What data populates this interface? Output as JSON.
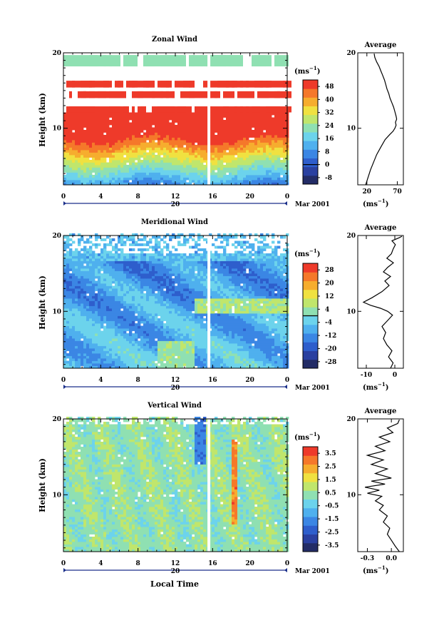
{
  "chart_data": [
    {
      "type": "heatmap",
      "title": "Zonal Wind",
      "ylabel": "Height (km)",
      "x_ticks": [
        "0",
        "4",
        "8",
        "12",
        "16",
        "20",
        "0"
      ],
      "y_ticks": [
        "10",
        "20"
      ],
      "ylim": [
        2.5,
        20
      ],
      "date_day": "20",
      "date_label": "Mar 2001",
      "colorbar": {
        "unit_base": "(ms",
        "unit_exp": "−1",
        "unit_close": ")",
        "labels": [
          "48",
          "40",
          "32",
          "24",
          "16",
          "8",
          "0",
          "-8"
        ],
        "range": [
          -12,
          52
        ],
        "contour_at": 0,
        "colors": [
          "#232c66",
          "#2a40a0",
          "#2e5ecc",
          "#3b86e4",
          "#4fb0ee",
          "#6cd3ec",
          "#8fe0b2",
          "#c0e66c",
          "#f0e140",
          "#f6ad2e",
          "#f5782a",
          "#ee3a2a"
        ]
      },
      "profile": {
        "title": "Average",
        "x_ticks": [
          "20",
          "70"
        ],
        "xlim": [
          5,
          80
        ],
        "y_ticks": [
          "10",
          "20"
        ],
        "xlabel_base": "(ms",
        "xlabel_exp": "−1",
        "xlabel_close": ")",
        "points": [
          [
            18,
            2.5
          ],
          [
            22,
            3.5
          ],
          [
            26,
            4.5
          ],
          [
            31,
            5.5
          ],
          [
            36,
            6.5
          ],
          [
            43,
            7.5
          ],
          [
            50,
            8.5
          ],
          [
            58,
            9.2
          ],
          [
            63,
            9.6
          ],
          [
            66,
            10.0
          ],
          [
            68,
            10.4
          ],
          [
            67,
            10.8
          ],
          [
            69,
            11.2
          ],
          [
            68,
            11.6
          ],
          [
            66,
            12.2
          ],
          [
            64,
            12.8
          ],
          [
            61,
            13.4
          ],
          [
            58,
            14.0
          ],
          [
            56,
            14.6
          ],
          [
            53,
            15.2
          ],
          [
            51,
            15.8
          ],
          [
            49,
            16.4
          ],
          [
            46,
            17.0
          ],
          [
            43,
            17.6
          ],
          [
            40,
            18.2
          ],
          [
            36,
            18.8
          ],
          [
            33,
            19.4
          ],
          [
            32,
            19.9
          ]
        ]
      },
      "features": {
        "gap_x": 15.6,
        "noise_top": 18.0,
        "cutoff": 9,
        "bands": [
          {
            "min": 8.5,
            "max": 10.5,
            "value": 30,
            "startRow": 1
          },
          {
            "min": 11.8,
            "max": 12.8,
            "value": 55,
            "startRow": 1
          },
          {
            "min": 14.0,
            "max": 15.0,
            "value": 50,
            "startRow": 1
          },
          {
            "min": 18.0,
            "max": 19.8,
            "value": 26,
            "startRow": 1
          }
        ]
      }
    },
    {
      "type": "heatmap",
      "title": "Meridional Wind",
      "ylabel": "Height (km)",
      "x_ticks": [
        "0",
        "4",
        "8",
        "12",
        "16",
        "20",
        "0"
      ],
      "y_ticks": [
        "10",
        "20"
      ],
      "ylim": [
        2.5,
        20
      ],
      "date_day": "20",
      "date_label": "Mar 2001",
      "colorbar": {
        "unit_base": "(ms",
        "unit_exp": "−1",
        "unit_close": ")",
        "labels": [
          "28",
          "20",
          "12",
          "4",
          "-4",
          "-12",
          "-20",
          "-28"
        ],
        "range": [
          -32,
          32
        ],
        "contour_at": 0,
        "colors": [
          "#232c66",
          "#2a40a0",
          "#2e5ecc",
          "#3b86e4",
          "#4fb0ee",
          "#6cd3ec",
          "#8fe0b2",
          "#c0e66c",
          "#f0e140",
          "#f6ad2e",
          "#f5782a",
          "#ee3a2a"
        ]
      },
      "profile": {
        "title": "Average",
        "x_ticks": [
          "-10",
          "0"
        ],
        "xlim": [
          -13,
          3
        ],
        "y_ticks": [
          "10",
          "20"
        ],
        "xlabel_base": "(ms",
        "xlabel_exp": "−1",
        "xlabel_close": ")",
        "points": [
          [
            -1.5,
            2.5
          ],
          [
            -0.6,
            3.2
          ],
          [
            -2.2,
            4.0
          ],
          [
            -1.0,
            4.8
          ],
          [
            -2.8,
            5.6
          ],
          [
            -4.0,
            6.4
          ],
          [
            -3.2,
            7.2
          ],
          [
            -4.5,
            8.0
          ],
          [
            -2.5,
            8.8
          ],
          [
            -0.8,
            9.5
          ],
          [
            -2.5,
            10.0
          ],
          [
            -5.0,
            10.4
          ],
          [
            -8.5,
            10.8
          ],
          [
            -11.0,
            11.2
          ],
          [
            -8.0,
            11.8
          ],
          [
            -4.5,
            12.6
          ],
          [
            -2.0,
            13.4
          ],
          [
            -3.5,
            14.0
          ],
          [
            -1.5,
            14.6
          ],
          [
            -4.0,
            15.2
          ],
          [
            -2.5,
            15.8
          ],
          [
            -0.5,
            16.4
          ],
          [
            -2.8,
            17.0
          ],
          [
            -1.2,
            17.6
          ],
          [
            -0.6,
            18.2
          ],
          [
            0.2,
            18.8
          ],
          [
            -1.0,
            19.3
          ],
          [
            1.5,
            19.7
          ],
          [
            2.5,
            19.9
          ]
        ]
      },
      "features": {
        "gap_x": 15.6,
        "noise_top": 17.5,
        "cutoff": 6,
        "bands": [
          {
            "min": 9.8,
            "max": 12.0,
            "value": -15,
            "startRow": 1
          },
          {
            "min": 14.5,
            "max": 16.0,
            "value": -12,
            "startRow": 1
          },
          {
            "min": 4.0,
            "max": 5.5,
            "value": -14,
            "startRow": 1
          }
        ]
      }
    },
    {
      "type": "heatmap",
      "title": "Vertical Wind",
      "ylabel": "Height (km)",
      "xlabel": "Local Time",
      "x_ticks": [
        "0",
        "4",
        "8",
        "12",
        "16",
        "20",
        "0"
      ],
      "y_ticks": [
        "10",
        "20"
      ],
      "ylim": [
        2.5,
        20
      ],
      "date_day": "20",
      "date_label": "Mar 2001",
      "colorbar": {
        "unit_base": "(ms",
        "unit_exp": "−1",
        "unit_close": ")",
        "labels": [
          "3.5",
          "2.5",
          "1.5",
          "0.5",
          "-0.5",
          "-1.5",
          "-2.5",
          "-3.5"
        ],
        "range": [
          -4,
          4
        ],
        "contour_at": null,
        "colors": [
          "#232c66",
          "#2a40a0",
          "#2e5ecc",
          "#3b86e4",
          "#4fb0ee",
          "#6cd3ec",
          "#8fe0b2",
          "#c0e66c",
          "#f0e140",
          "#f6ad2e",
          "#f5782a",
          "#ee3a2a"
        ]
      },
      "profile": {
        "title": "Average",
        "x_ticks": [
          "-0.3",
          "0.0"
        ],
        "xlim": [
          -0.42,
          0.15
        ],
        "y_ticks": [
          "10",
          "20"
        ],
        "xlabel_base": "(ms",
        "xlabel_exp": "−1",
        "xlabel_close": ")",
        "points": [
          [
            0.1,
            2.5
          ],
          [
            0.05,
            3.2
          ],
          [
            0.0,
            4.0
          ],
          [
            -0.05,
            4.8
          ],
          [
            -0.02,
            5.6
          ],
          [
            -0.1,
            6.4
          ],
          [
            -0.05,
            7.2
          ],
          [
            -0.15,
            8.0
          ],
          [
            -0.1,
            8.6
          ],
          [
            -0.2,
            9.2
          ],
          [
            -0.12,
            9.8
          ],
          [
            -0.3,
            10.2
          ],
          [
            -0.15,
            10.6
          ],
          [
            -0.33,
            11.0
          ],
          [
            -0.08,
            11.4
          ],
          [
            -0.25,
            11.8
          ],
          [
            0.0,
            12.2
          ],
          [
            -0.2,
            12.8
          ],
          [
            -0.05,
            13.4
          ],
          [
            -0.25,
            14.0
          ],
          [
            -0.1,
            14.6
          ],
          [
            -0.3,
            15.2
          ],
          [
            -0.08,
            15.8
          ],
          [
            -0.2,
            16.4
          ],
          [
            -0.02,
            17.0
          ],
          [
            -0.15,
            17.6
          ],
          [
            0.02,
            18.2
          ],
          [
            -0.05,
            18.8
          ],
          [
            0.08,
            19.4
          ],
          [
            0.1,
            19.9
          ]
        ]
      },
      "features": {
        "gap_x": 15.6,
        "noise_top": 19.0,
        "cutoff": 15,
        "bands": []
      }
    }
  ]
}
